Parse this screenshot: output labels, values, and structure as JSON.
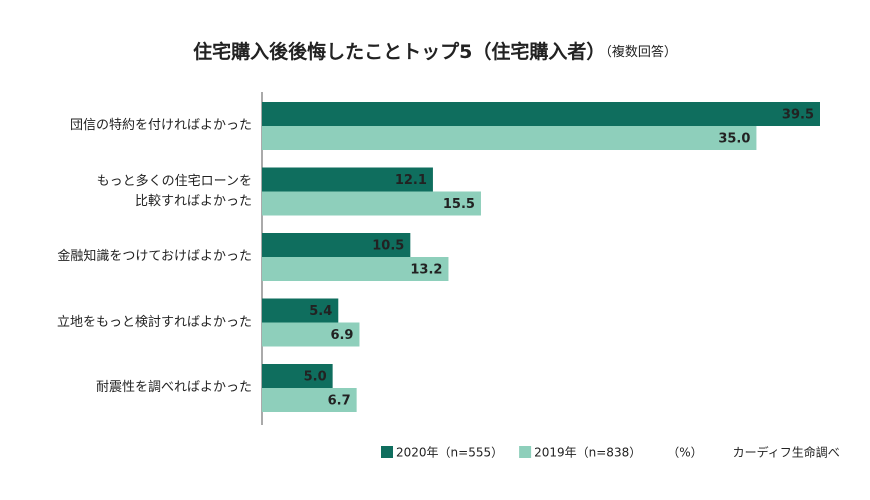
{
  "chart_data": {
    "type": "bar",
    "orientation": "horizontal",
    "title": "住宅購入後後悔したことトップ5（住宅購入者）",
    "subtitle": "（複数回答）",
    "categories": [
      "団信の特約を付ければよかった",
      "もっと多くの住宅ローンを\n比較すればよかった",
      "金融知識をつけておけばよかった",
      "立地をもっと検討すればよかった",
      "耐震性を調べればよかった"
    ],
    "series": [
      {
        "name": "2020年（n=555）",
        "color": "#0f6e5e",
        "values": [
          39.5,
          12.1,
          10.5,
          5.4,
          5.0
        ],
        "value_labels": [
          "39.5",
          "12.1",
          "10.5",
          "5.4",
          "5.0"
        ]
      },
      {
        "name": "2019年（n=838）",
        "color": "#8ecfbb",
        "values": [
          35.0,
          15.5,
          13.2,
          6.9,
          6.7
        ],
        "value_labels": [
          "35.0",
          "15.5",
          "13.2",
          "6.9",
          "6.7"
        ]
      }
    ],
    "xlim": [
      0,
      39.5
    ],
    "unit": "（%）",
    "source": "カーディフ生命調べ"
  }
}
